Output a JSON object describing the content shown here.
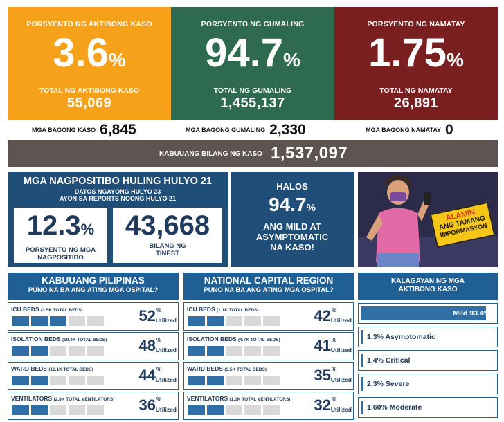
{
  "top_cards": [
    {
      "label": "PORSYENTO NG AKTIBONG KASO",
      "percent": "3.6",
      "percent_sign": "%",
      "sub_label": "TOTAL NG AKTIBONG KASO",
      "count": "55,069",
      "color": "#f5a11a"
    },
    {
      "label": "PORSYENTO NG GUMALING",
      "percent": "94.7",
      "percent_sign": "%",
      "sub_label": "TOTAL NG GUMALING",
      "count": "1,455,137",
      "color": "#2d6a4f"
    },
    {
      "label": "PORSYENTO NG NAMATAY",
      "percent": "1.75",
      "percent_sign": "%",
      "sub_label": "TOTAL NG NAMATAY",
      "count": "26,891",
      "color": "#7a1f1f"
    }
  ],
  "new_counts": [
    {
      "label": "MGA BAGONG KASO",
      "value": "6,845"
    },
    {
      "label": "MGA BAGONG GUMALING",
      "value": "2,330"
    },
    {
      "label": "MGA BAGONG NAMATAY",
      "value": "0"
    }
  ],
  "total_cases": {
    "label": "KABUUANG BILANG NG KASO",
    "value": "1,537,097"
  },
  "positivity": {
    "title": "MGA NAGPOSITIBO HULING HULYO 21",
    "line1": "DATOS NGAYONG HULYO 23",
    "line2": "AYON SA REPORTS NOONG HULYO 21",
    "rate": "12.3",
    "rate_sign": "%",
    "rate_label_1": "PORSYENTO NG MGA",
    "rate_label_2": "NAGPOSITIBO",
    "tested": "43,668",
    "tested_label_1": "BILANG NG",
    "tested_label_2": "TINEST"
  },
  "mild": {
    "line1": "HALOS",
    "value": "94.7",
    "sign": "%",
    "line2": "ANG MILD AT",
    "line3": "ASYMPTOMATIC",
    "line4": "NA KASO!"
  },
  "promo": {
    "line1": "ALAMIN",
    "line2": "ANG TAMANG",
    "line3": "IMPORMASYON"
  },
  "hospital_sections": [
    {
      "title": "KABUUANG PILIPINAS",
      "subtitle": "PUNO NA BA ANG ATING MGA OSPITAL?",
      "rows": [
        {
          "label": "ICU BEDS",
          "note": "(3.5K TOTAL BEDS)",
          "value": "52",
          "filled": 3
        },
        {
          "label": "ISOLATION BEDS",
          "note": "(19.4K TOTAL BEDS)",
          "value": "48",
          "filled": 2
        },
        {
          "label": "WARD BEDS",
          "note": "(12.1K TOTAL BEDS)",
          "value": "44",
          "filled": 2
        },
        {
          "label": "VENTILATORS",
          "note": "(2.8K TOTAL VENTILATORS)",
          "value": "36",
          "filled": 2
        }
      ]
    },
    {
      "title": "NATIONAL CAPITAL REGION",
      "subtitle": "PUNO NA BA ANG ATING MGA OSPITAL?",
      "rows": [
        {
          "label": "ICU BEDS",
          "note": "(1.1K TOTAL BEDS)",
          "value": "42",
          "filled": 2
        },
        {
          "label": "ISOLATION BEDS",
          "note": "(4.7K TOTAL BEDS)",
          "value": "41",
          "filled": 2
        },
        {
          "label": "WARD BEDS",
          "note": "(3.5K TOTAL BEDS)",
          "value": "35",
          "filled": 2
        },
        {
          "label": "VENTILATORS",
          "note": "(1.0K TOTAL VENTILATORS)",
          "value": "32",
          "filled": 2
        }
      ]
    }
  ],
  "pct_sign": "%",
  "utilized": "Utilized",
  "status": {
    "title_1": "KALAGAYAN NG MGA",
    "title_2": "AKTIBONG KASO",
    "items": [
      {
        "label": "Mild 93.4%",
        "fraction": 0.934
      },
      {
        "label": "1.3% Asymptomatic",
        "fraction": 0.013
      },
      {
        "label": "1.4% Critical",
        "fraction": 0.014
      },
      {
        "label": "2.3% Severe",
        "fraction": 0.023
      },
      {
        "label": "1.60% Moderate",
        "fraction": 0.016
      }
    ]
  }
}
